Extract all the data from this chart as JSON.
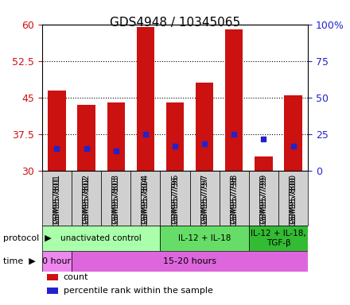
{
  "title": "GDS4948 / 10345065",
  "samples": [
    "GSM957801",
    "GSM957802",
    "GSM957803",
    "GSM957804",
    "GSM957796",
    "GSM957797",
    "GSM957798",
    "GSM957799",
    "GSM957800"
  ],
  "bar_tops": [
    46.5,
    43.5,
    44.0,
    59.5,
    44.0,
    48.0,
    59.0,
    33.0,
    45.5
  ],
  "bar_bottoms": [
    30,
    30,
    30,
    30,
    30,
    30,
    30,
    30,
    30
  ],
  "blue_marks": [
    34.5,
    34.5,
    34.0,
    37.5,
    35.0,
    35.5,
    37.5,
    36.5,
    35.0
  ],
  "ylim_left": [
    30,
    60
  ],
  "ylim_right": [
    0,
    100
  ],
  "yticks_left": [
    30,
    37.5,
    45,
    52.5,
    60
  ],
  "yticks_right": [
    0,
    25,
    50,
    75,
    100
  ],
  "bar_color": "#cc1111",
  "blue_color": "#2222cc",
  "grid_color": "#000000",
  "protocol_groups": [
    {
      "label": "unactivated control",
      "start": 0,
      "end": 4,
      "color": "#aaffaa"
    },
    {
      "label": "IL-12 + IL-18",
      "start": 4,
      "end": 7,
      "color": "#66dd66"
    },
    {
      "label": "IL-12 + IL-18,\nTGF-β",
      "start": 7,
      "end": 9,
      "color": "#33bb33"
    }
  ],
  "time_groups": [
    {
      "label": "0 hour",
      "start": 0,
      "end": 1,
      "color": "#ee88ee"
    },
    {
      "label": "15-20 hours",
      "start": 1,
      "end": 9,
      "color": "#dd66dd"
    }
  ],
  "legend_items": [
    {
      "color": "#cc1111",
      "label": "count"
    },
    {
      "color": "#2222cc",
      "label": "percentile rank within the sample"
    }
  ],
  "xlabel_color": "#cc1111",
  "ylabel_right_color": "#2222cc",
  "protocol_label": "protocol",
  "time_label": "time",
  "bar_width": 0.6
}
